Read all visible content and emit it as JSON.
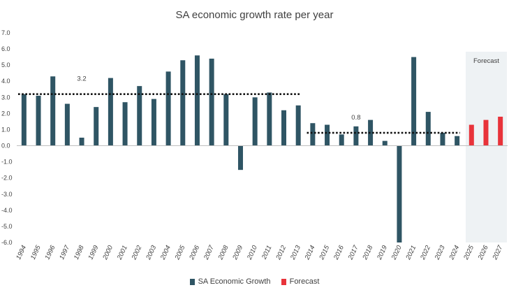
{
  "chart_data": {
    "type": "bar",
    "title": "SA economic growth rate per year",
    "categories": [
      "1994",
      "1995",
      "1996",
      "1997",
      "1998",
      "1999",
      "2000",
      "2001",
      "2002",
      "2003",
      "2004",
      "2005",
      "2006",
      "2007",
      "2008",
      "2009",
      "2010",
      "2011",
      "2012",
      "2013",
      "2014",
      "2015",
      "2016",
      "2017",
      "2018",
      "2019",
      "2020",
      "2021",
      "2022",
      "2023",
      "2024",
      "2025",
      "2026",
      "2027"
    ],
    "series": [
      {
        "name": "SA Economic Growth",
        "color": "#2f5564",
        "values": [
          3.2,
          3.1,
          4.3,
          2.6,
          0.5,
          2.4,
          4.2,
          2.7,
          3.7,
          2.9,
          4.6,
          5.3,
          5.6,
          5.4,
          3.2,
          -1.5,
          3.0,
          3.3,
          2.2,
          2.5,
          1.4,
          1.3,
          0.7,
          1.2,
          1.6,
          0.3,
          -6.0,
          5.5,
          2.1,
          0.8,
          0.6,
          null,
          null,
          null
        ]
      },
      {
        "name": "Forecast",
        "color": "#e8333a",
        "values": [
          null,
          null,
          null,
          null,
          null,
          null,
          null,
          null,
          null,
          null,
          null,
          null,
          null,
          null,
          null,
          null,
          null,
          null,
          null,
          null,
          null,
          null,
          null,
          null,
          null,
          null,
          null,
          null,
          null,
          null,
          null,
          1.3,
          1.6,
          1.8
        ]
      }
    ],
    "yticks": [
      "7.0",
      "6.0",
      "5.0",
      "4.0",
      "3.0",
      "2.0",
      "1.0",
      "0.0",
      "-1.0",
      "-2.0",
      "-3.0",
      "-4.0",
      "-5.0",
      "-6.0"
    ],
    "ylim": [
      -6.0,
      7.0
    ],
    "reference_lines": [
      {
        "value": 3.2,
        "label": "3.2",
        "from": "1994",
        "to": "2013"
      },
      {
        "value": 0.8,
        "label": "0.8",
        "from": "2014",
        "to": "2024"
      }
    ],
    "forecast_region": {
      "label": "Forecast",
      "from": "2025",
      "to": "2027",
      "color": "#eef2f4"
    },
    "legend_position": "bottom",
    "grid": false
  }
}
